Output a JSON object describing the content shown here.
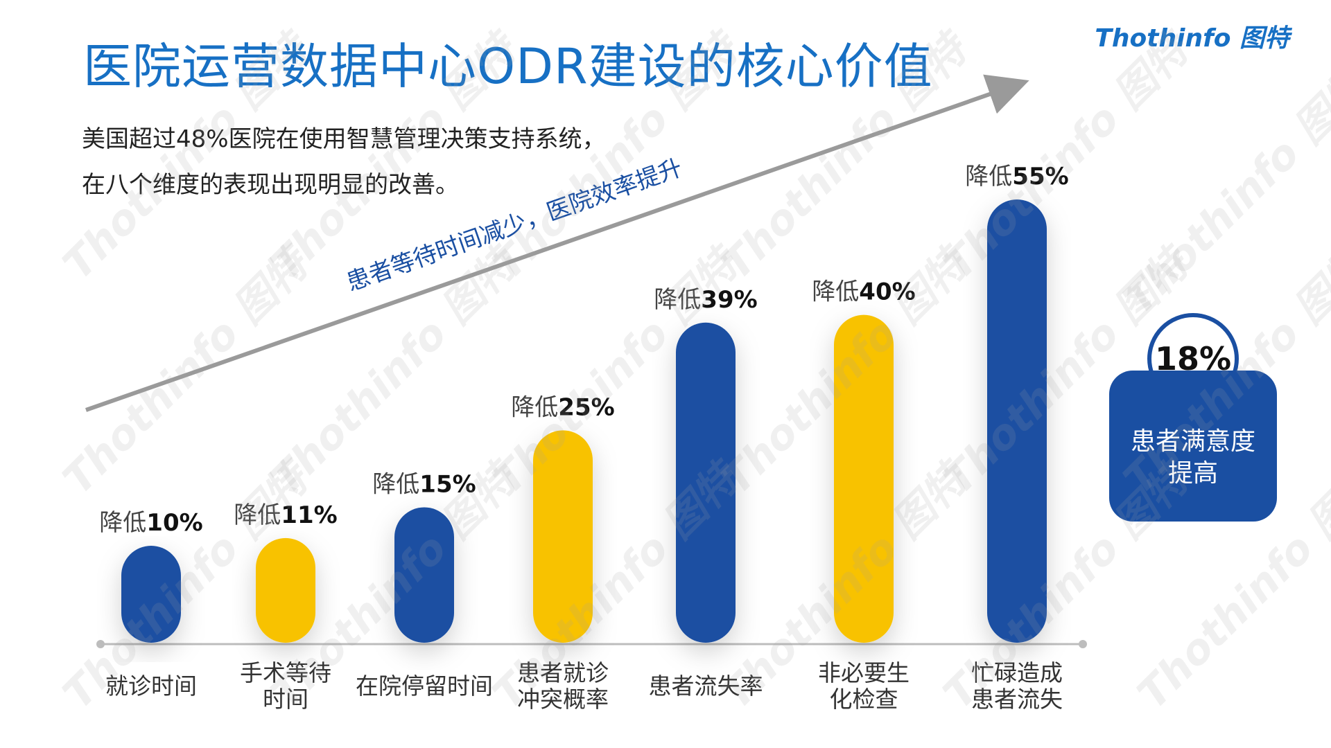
{
  "title": "医院运营数据中心ODR建设的核心价值",
  "subtitle_lines": [
    "美国超过48%医院在使用智慧管理决策支持系统，",
    "在八个维度的表现出现明显的改善。"
  ],
  "logo": "Thothinfo 图特",
  "watermark": "Thothinfo 图特",
  "arrow_label": "患者等待时间减少，医院效率提升",
  "badge": {
    "value": "18%",
    "label_line1": "患者满意度",
    "label_line2": "提高"
  },
  "colors": {
    "blue": "#1a4fa2",
    "yellow": "#f8c200",
    "title": "#1770c4"
  },
  "chart_data": {
    "type": "bar",
    "value_prefix": "降低",
    "categories": [
      [
        "就诊时间"
      ],
      [
        "手术等待",
        "时间"
      ],
      [
        "在院停留时间"
      ],
      [
        "患者就诊",
        "冲突概率"
      ],
      [
        "患者流失率"
      ],
      [
        "非必要生",
        "化检查"
      ],
      [
        "忙碌造成",
        "患者流失"
      ]
    ],
    "values": [
      10,
      11,
      15,
      25,
      39,
      40,
      55
    ],
    "value_labels": [
      "10%",
      "11%",
      "15%",
      "25%",
      "39%",
      "40%",
      "55%"
    ],
    "bar_colors": [
      "blue",
      "yellow",
      "blue",
      "yellow",
      "blue",
      "yellow",
      "blue"
    ],
    "ylim": [
      0,
      55
    ],
    "legend": "none",
    "grid": false
  }
}
